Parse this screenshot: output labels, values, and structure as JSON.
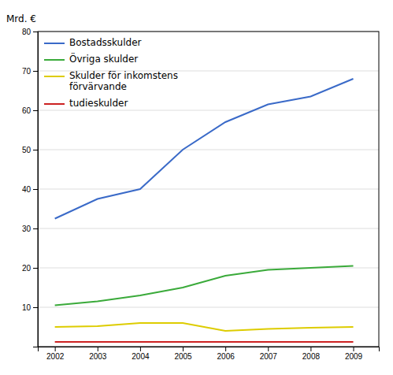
{
  "chart_data": {
    "type": "line",
    "ylabel": "Mrd. €",
    "x": [
      2002,
      2003,
      2004,
      2005,
      2006,
      2007,
      2008,
      2009
    ],
    "series": [
      {
        "name": "Bostadsskulder",
        "color": "#3a6ac8",
        "values": [
          32.5,
          37.5,
          40.0,
          50.0,
          57.0,
          61.5,
          63.5,
          68.0
        ]
      },
      {
        "name": "Övriga skulder",
        "color": "#3aaa3a",
        "values": [
          10.5,
          11.5,
          13.0,
          15.0,
          18.0,
          19.5,
          20.0,
          20.5
        ]
      },
      {
        "name": "Skulder för inkomstens\nförvärvande",
        "color": "#ddcc00",
        "values": [
          5.0,
          5.2,
          6.0,
          6.0,
          4.0,
          4.5,
          4.8,
          5.0
        ]
      },
      {
        "name": "tudieskulder",
        "color": "#cc2222",
        "values": [
          1.2,
          1.2,
          1.2,
          1.2,
          1.2,
          1.2,
          1.2,
          1.2
        ]
      }
    ],
    "xlim": [
      2001.6,
      2009.6
    ],
    "xticks": [
      2002,
      2003,
      2004,
      2005,
      2006,
      2007,
      2008,
      2009
    ],
    "ylim": [
      0,
      80
    ],
    "yticks": [
      10,
      20,
      30,
      40,
      50,
      60,
      70,
      80
    ],
    "grid": true,
    "legend": "upper left"
  }
}
